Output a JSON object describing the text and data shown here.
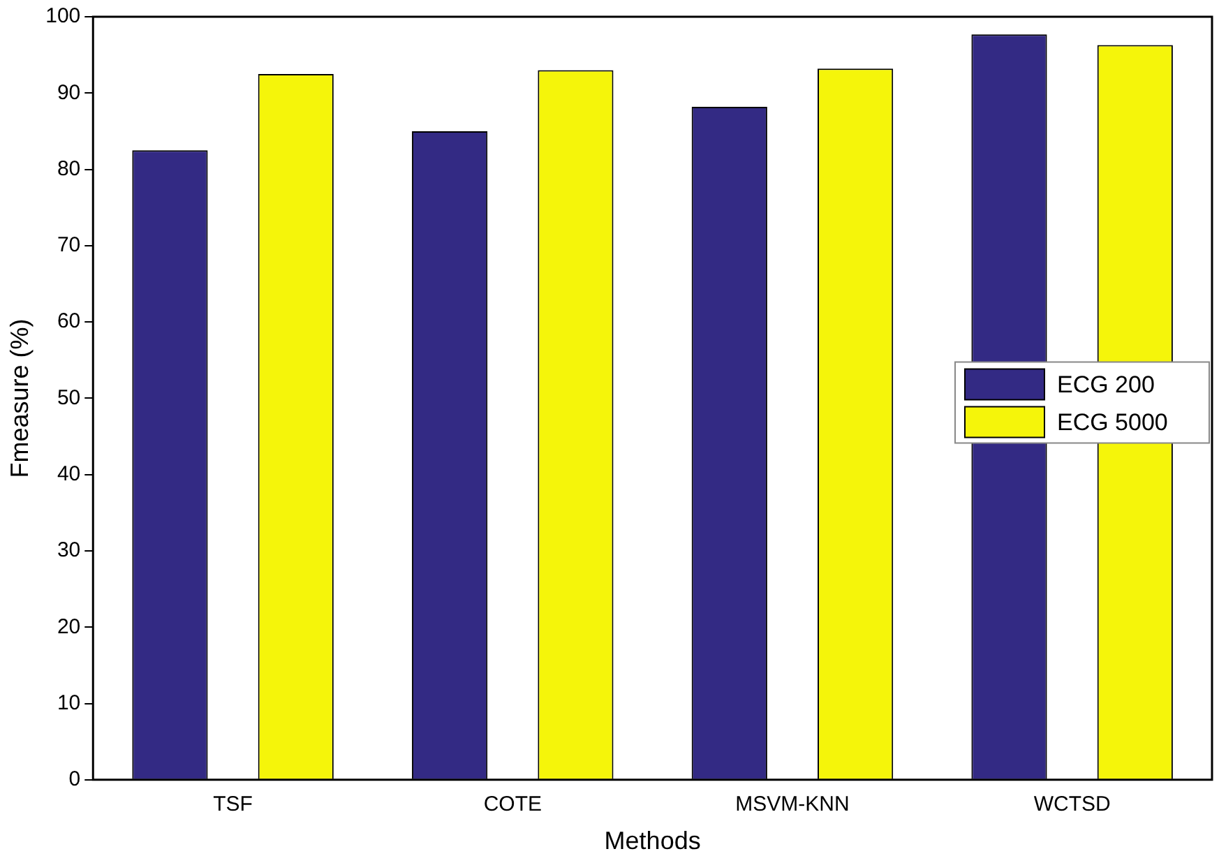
{
  "chart_data": {
    "type": "bar",
    "xlabel": "Methods",
    "ylabel": "Fmeasure (%)",
    "categories": [
      "TSF",
      "COTE",
      "MSVM-KNN",
      "WCTSD"
    ],
    "series": [
      {
        "name": "ECG 200",
        "color": "#332a84",
        "values": [
          82.5,
          85.0,
          88.2,
          97.7
        ]
      },
      {
        "name": "ECG 5000",
        "color": "#f5f50a",
        "values": [
          92.5,
          93.0,
          93.2,
          96.3
        ]
      }
    ],
    "ylim": [
      0,
      100
    ],
    "yticks": [
      0,
      10,
      20,
      30,
      40,
      50,
      60,
      70,
      80,
      90,
      100
    ],
    "grid": false,
    "legend": "right"
  }
}
